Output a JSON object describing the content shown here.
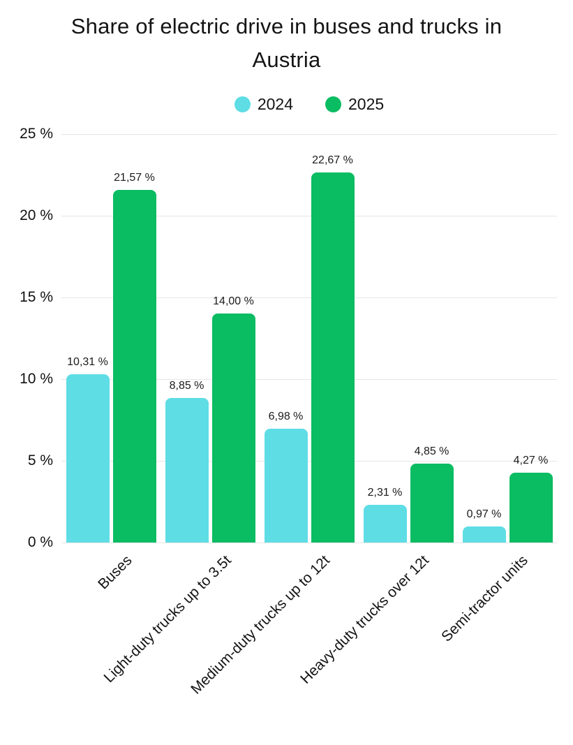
{
  "title": "Share of electric drive in buses and trucks in Austria",
  "chart_data": {
    "type": "bar",
    "title": "Share of electric drive in buses and trucks in Austria",
    "categories": [
      "Buses",
      "Light-duty trucks up to 3.5t",
      "Medium-duty trucks up to 12t",
      "Heavy-duty trucks over 12t",
      "Semi-tractor units"
    ],
    "series": [
      {
        "name": "2024",
        "color": "#5edde5",
        "values": [
          10.31,
          8.85,
          6.98,
          2.31,
          0.97
        ],
        "labels": [
          "10,31 %",
          "8,85 %",
          "6,98 %",
          "2,31 %",
          "0,97 %"
        ]
      },
      {
        "name": "2025",
        "color": "#0abc62",
        "values": [
          21.57,
          14.0,
          22.67,
          4.85,
          4.27
        ],
        "labels": [
          "21,57 %",
          "14,00 %",
          "22,67 %",
          "4,85 %",
          "4,27 %"
        ]
      }
    ],
    "xlabel": "",
    "ylabel": "",
    "ylim": [
      0,
      25
    ],
    "yticks": [
      0,
      5,
      10,
      15,
      20,
      25
    ],
    "ytick_labels": [
      "0 %",
      "5 %",
      "10 %",
      "15 %",
      "20 %",
      "25 %"
    ],
    "grid": true,
    "grid_color": "#e5e5e5",
    "legend_position": "top"
  }
}
